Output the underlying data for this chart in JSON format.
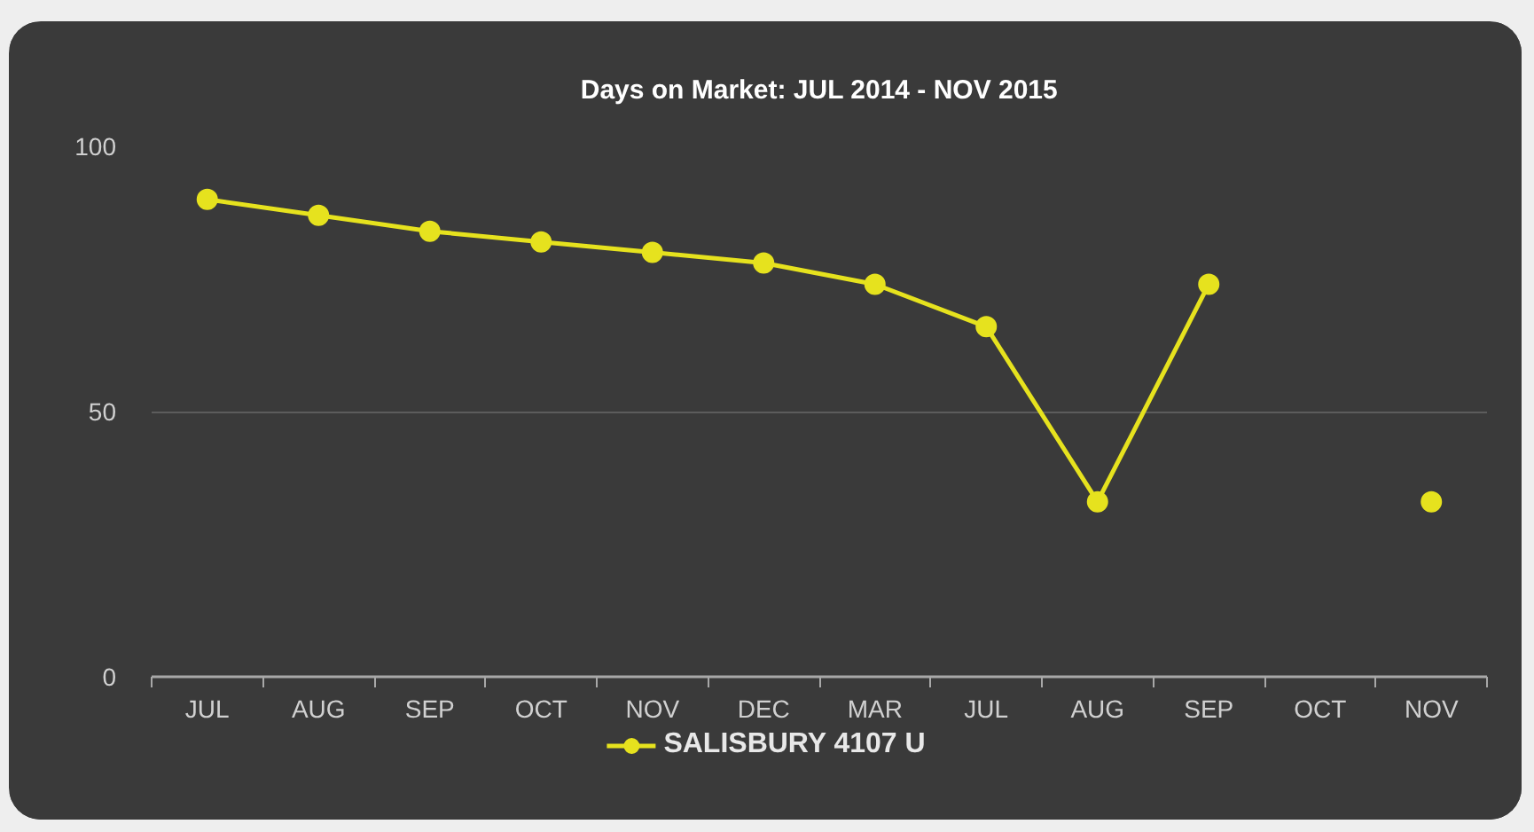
{
  "chart_data": {
    "type": "line",
    "title": "Days on Market: JUL 2014 - NOV 2015",
    "categories": [
      "JUL",
      "AUG",
      "SEP",
      "OCT",
      "NOV",
      "DEC",
      "MAR",
      "JUL",
      "AUG",
      "SEP",
      "OCT",
      "NOV"
    ],
    "series": [
      {
        "name": "SALISBURY 4107 U",
        "color": "#e6e21e",
        "values": [
          90,
          87,
          84,
          82,
          80,
          78,
          74,
          66,
          33,
          74,
          null,
          33
        ]
      }
    ],
    "ylim": [
      0,
      100
    ],
    "yticks": [
      0,
      50,
      100
    ],
    "grid": "y",
    "legend": "bottom",
    "marker": "circle",
    "line_style": "solid"
  }
}
